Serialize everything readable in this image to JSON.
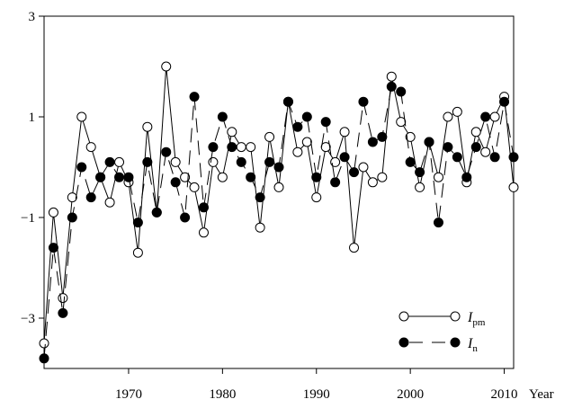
{
  "chart_data": {
    "type": "line",
    "xlabel": "Year",
    "ylabel": "",
    "xlim": [
      1961,
      2011
    ],
    "ylim": [
      -4,
      3
    ],
    "x_ticks": [
      1970,
      1980,
      1990,
      2000,
      2010
    ],
    "y_ticks": [
      -3,
      -1,
      1,
      3
    ],
    "grid": false,
    "legend_position": "bottom-right",
    "x": [
      1961,
      1962,
      1963,
      1964,
      1965,
      1966,
      1967,
      1968,
      1969,
      1970,
      1971,
      1972,
      1973,
      1974,
      1975,
      1976,
      1977,
      1978,
      1979,
      1980,
      1981,
      1982,
      1983,
      1984,
      1985,
      1986,
      1987,
      1988,
      1989,
      1990,
      1991,
      1992,
      1993,
      1994,
      1995,
      1996,
      1997,
      1998,
      1999,
      2000,
      2001,
      2002,
      2003,
      2004,
      2005,
      2006,
      2007,
      2008,
      2009,
      2010,
      2011
    ],
    "series": [
      {
        "name": "I_pm",
        "legend_main": "I",
        "legend_sub": "pm",
        "marker": "open-circle",
        "line_style": "solid",
        "values": [
          -3.5,
          -0.9,
          -2.6,
          -0.6,
          1.0,
          0.4,
          -0.2,
          -0.7,
          0.1,
          -0.3,
          -1.7,
          0.8,
          -0.9,
          2.0,
          0.1,
          -0.2,
          -0.4,
          -1.3,
          0.1,
          -0.2,
          0.7,
          0.4,
          0.4,
          -1.2,
          0.6,
          -0.4,
          1.3,
          0.3,
          0.5,
          -0.6,
          0.4,
          0.1,
          0.7,
          -1.6,
          0.0,
          -0.3,
          -0.2,
          1.8,
          0.9,
          0.6,
          -0.4,
          0.5,
          -0.2,
          1.0,
          1.1,
          -0.3,
          0.7,
          0.3,
          1.0,
          1.4,
          -0.4
        ]
      },
      {
        "name": "I_n",
        "legend_main": "I",
        "legend_sub": "n",
        "marker": "filled-circle",
        "line_style": "dashed",
        "values": [
          -3.8,
          -1.6,
          -2.9,
          -1.0,
          0.0,
          -0.6,
          -0.2,
          0.1,
          -0.2,
          -0.2,
          -1.1,
          0.1,
          -0.9,
          0.3,
          -0.3,
          -1.0,
          1.4,
          -0.8,
          0.4,
          1.0,
          0.4,
          0.1,
          -0.2,
          -0.6,
          0.1,
          0.0,
          1.3,
          0.8,
          1.0,
          -0.2,
          0.9,
          -0.3,
          0.2,
          -0.1,
          1.3,
          0.5,
          0.6,
          1.6,
          1.5,
          0.1,
          -0.1,
          0.5,
          -1.1,
          0.4,
          0.2,
          -0.2,
          0.4,
          1.0,
          0.2,
          1.3,
          0.2
        ]
      }
    ]
  }
}
